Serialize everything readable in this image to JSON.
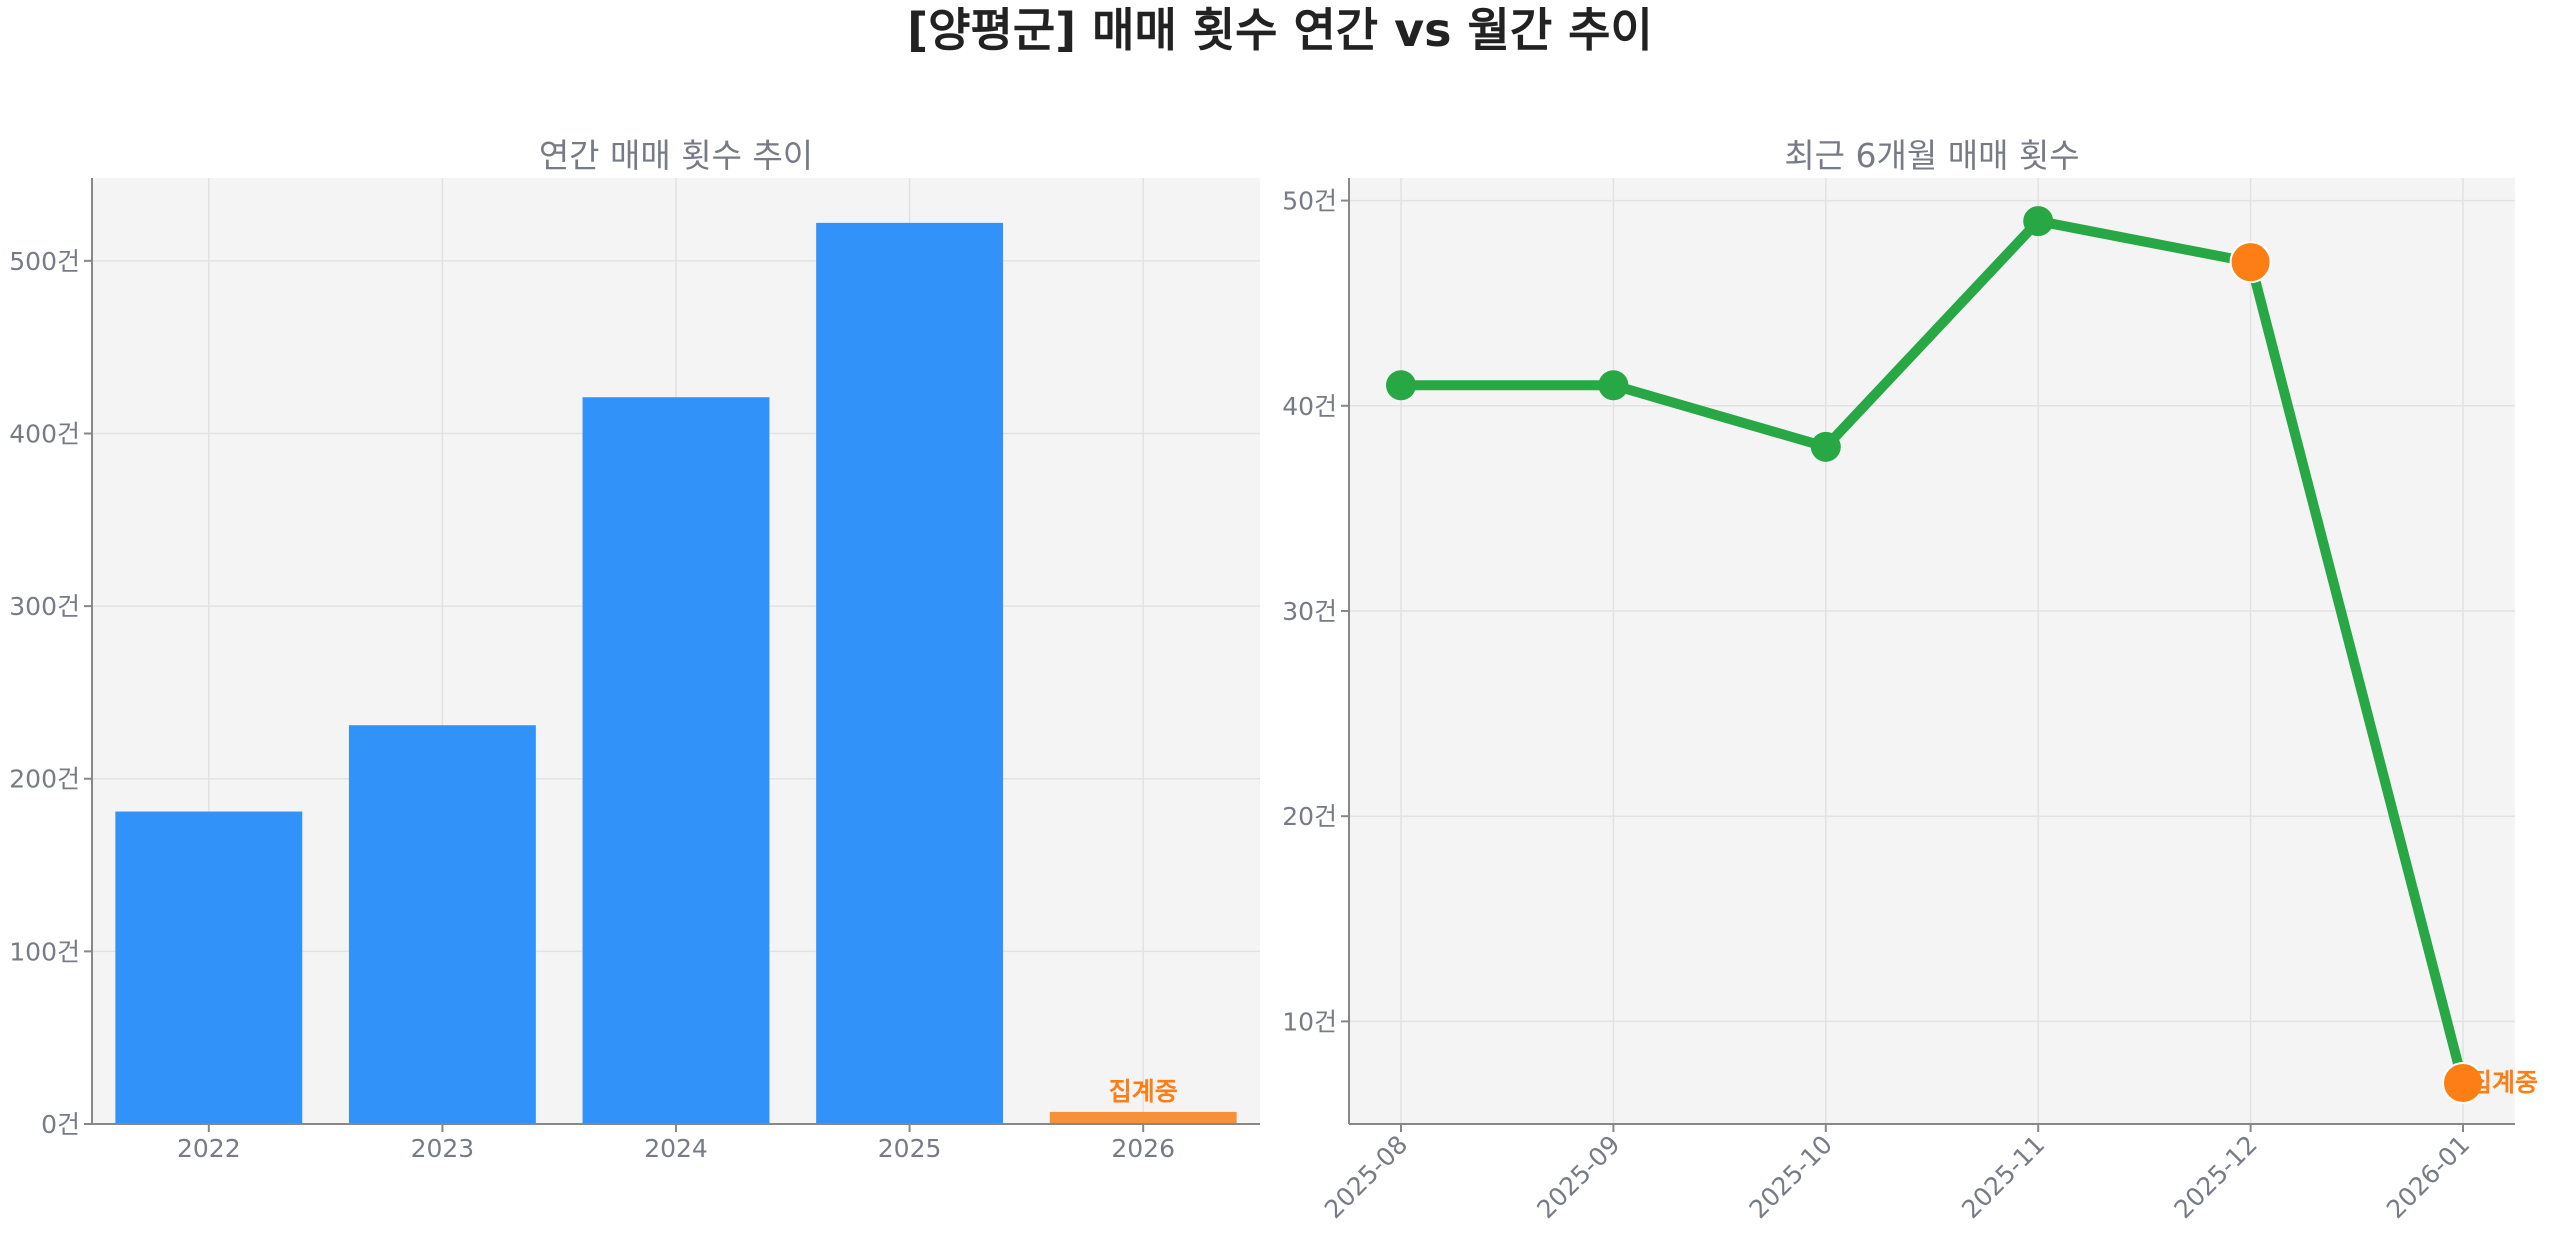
{
  "title": "[양평군] 매매 횟수 연간 vs 월간 추이",
  "colors": {
    "bar": "#3192f9",
    "bar_pending": "#f6913a",
    "line": "#28a745",
    "highlight": "#fd7e14",
    "pending_label": "#fd7e14"
  },
  "chart_data": [
    {
      "type": "bar",
      "title": "연간 매매 횟수 추이",
      "categories": [
        "2022",
        "2023",
        "2024",
        "2025",
        "2026"
      ],
      "values": [
        181,
        231,
        421,
        522,
        7
      ],
      "pending_index": 4,
      "pending_label": "집계중",
      "ylim": [
        0,
        548
      ],
      "yticks": [
        0,
        100,
        200,
        300,
        400,
        500
      ],
      "ytick_labels": [
        "0건",
        "100건",
        "200건",
        "300건",
        "400건",
        "500건"
      ],
      "grid": true
    },
    {
      "type": "line",
      "title": "최근 6개월 매매 횟수",
      "x": [
        "2025-08",
        "2025-09",
        "2025-10",
        "2025-11",
        "2025-12",
        "2026-01"
      ],
      "values": [
        41,
        41,
        38,
        49,
        47,
        7
      ],
      "highlight_indices": [
        4,
        5
      ],
      "pending_index": 5,
      "pending_label": "집계중",
      "ylim": [
        5,
        51.1
      ],
      "yticks": [
        10,
        20,
        30,
        40,
        50
      ],
      "ytick_labels": [
        "10건",
        "20건",
        "30건",
        "40건",
        "50건"
      ],
      "grid": true
    }
  ]
}
